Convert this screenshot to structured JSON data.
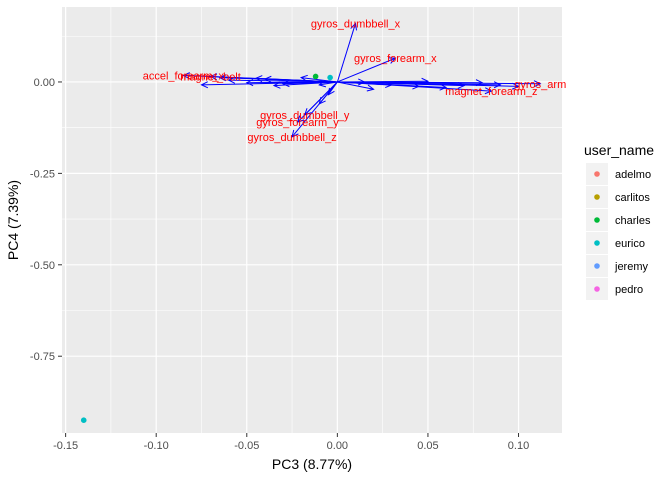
{
  "chart_data": {
    "type": "scatter",
    "title": "",
    "xlabel": "PC3 (8.77%)",
    "ylabel": "PC4 (7.39%)",
    "xlim": [
      -0.152,
      0.124
    ],
    "ylim": [
      -0.96,
      0.205
    ],
    "x_ticks": [
      -0.15,
      -0.1,
      -0.05,
      0.0,
      0.05,
      0.1
    ],
    "x_tick_labels": [
      "-0.15",
      "-0.10",
      "-0.05",
      "0.00",
      "0.05",
      "0.10"
    ],
    "y_ticks": [
      0.0,
      -0.25,
      -0.5,
      -0.75
    ],
    "y_tick_labels": [
      "0.00",
      "-0.25",
      "-0.50",
      "-0.75"
    ],
    "grid": true,
    "legend": {
      "title": "user_name",
      "placement": "right",
      "entries": [
        {
          "name": "adelmo",
          "color": "#F8766D"
        },
        {
          "name": "carlitos",
          "color": "#B79F00"
        },
        {
          "name": "charles",
          "color": "#00BA38"
        },
        {
          "name": "eurico",
          "color": "#00BFC4"
        },
        {
          "name": "jeremy",
          "color": "#619CFF"
        },
        {
          "name": "pedro",
          "color": "#F564E3"
        }
      ]
    },
    "points": [
      {
        "x": -0.14,
        "y": -0.925,
        "group": "eurico"
      },
      {
        "x": -0.012,
        "y": 0.015,
        "group": "charles"
      },
      {
        "x": -0.004,
        "y": 0.012,
        "group": "eurico"
      }
    ],
    "arrow_color": "#0000FF",
    "label_color": "#FF0000",
    "loadings": [
      {
        "x": 0.01,
        "y": 0.16,
        "label": "gyros_dumbbell_x"
      },
      {
        "x": 0.032,
        "y": 0.065,
        "label": "gyros_forearm_x"
      },
      {
        "x": 0.112,
        "y": -0.005,
        "label": "gyros_arm"
      },
      {
        "x": 0.085,
        "y": -0.025,
        "label": "magnet_forearm_z"
      },
      {
        "x": 0.07,
        "y": -0.01,
        "label": ""
      },
      {
        "x": 0.09,
        "y": -0.008,
        "label": ""
      },
      {
        "x": 0.06,
        "y": -0.015,
        "label": ""
      },
      {
        "x": 0.045,
        "y": -0.012,
        "label": ""
      },
      {
        "x": 0.03,
        "y": -0.008,
        "label": ""
      },
      {
        "x": 0.05,
        "y": 0.002,
        "label": ""
      },
      {
        "x": 0.02,
        "y": -0.02,
        "label": ""
      },
      {
        "x": 0.015,
        "y": 0.0,
        "label": ""
      },
      {
        "x": 0.08,
        "y": -0.002,
        "label": ""
      },
      {
        "x": 0.1,
        "y": -0.012,
        "label": ""
      },
      {
        "x": -0.085,
        "y": 0.018,
        "label": "accel_forearm_x"
      },
      {
        "x": -0.07,
        "y": 0.015,
        "label": "magnet_belt"
      },
      {
        "x": -0.06,
        "y": 0.005,
        "label": ""
      },
      {
        "x": -0.05,
        "y": -0.002,
        "label": ""
      },
      {
        "x": -0.04,
        "y": 0.008,
        "label": ""
      },
      {
        "x": -0.03,
        "y": -0.005,
        "label": ""
      },
      {
        "x": -0.02,
        "y": 0.012,
        "label": ""
      },
      {
        "x": -0.075,
        "y": -0.008,
        "label": ""
      },
      {
        "x": -0.045,
        "y": 0.01,
        "label": ""
      },
      {
        "x": -0.01,
        "y": -0.008,
        "label": ""
      },
      {
        "x": -0.035,
        "y": -0.01,
        "label": ""
      },
      {
        "x": -0.065,
        "y": 0.012,
        "label": ""
      },
      {
        "x": -0.018,
        "y": -0.09,
        "label": "gyros_dumbbell_y"
      },
      {
        "x": -0.022,
        "y": -0.11,
        "label": "gyros_forearm_y"
      },
      {
        "x": -0.025,
        "y": -0.15,
        "label": "gyros_dumbbell_z"
      },
      {
        "x": -0.01,
        "y": -0.06,
        "label": ""
      },
      {
        "x": -0.005,
        "y": -0.035,
        "label": ""
      }
    ]
  }
}
